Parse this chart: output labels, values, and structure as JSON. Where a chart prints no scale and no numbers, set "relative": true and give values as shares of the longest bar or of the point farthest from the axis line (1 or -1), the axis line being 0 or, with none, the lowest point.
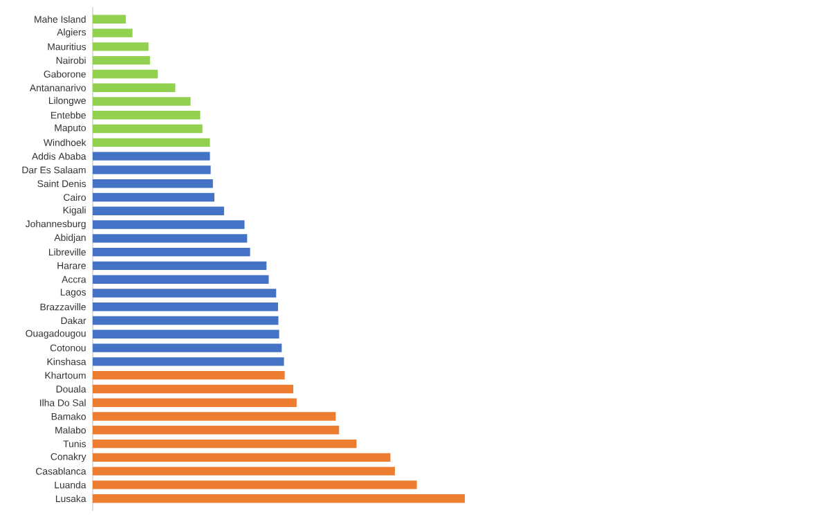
{
  "chart_data": {
    "type": "bar",
    "orientation": "horizontal",
    "relative": true,
    "categories": [
      "Mahe Island",
      "Algiers",
      "Mauritius",
      "Nairobi",
      "Gaborone",
      "Antananarivo",
      "Lilongwe",
      "Entebbe",
      "Maputo",
      "Windhoek",
      "Addis Ababa",
      "Dar Es Salaam",
      "Saint Denis",
      "Cairo",
      "Kigali",
      "Johannesburg",
      "Abidjan",
      "Libreville",
      "Harare",
      "Accra",
      "Lagos",
      "Brazzaville",
      "Dakar",
      "Ouagadougou",
      "Cotonou",
      "Kinshasa",
      "Khartoum",
      "Douala",
      "Ilha Do Sal",
      "Bamako",
      "Malabo",
      "Tunis",
      "Conakry",
      "Casablanca",
      "Luanda",
      "Lusaka"
    ],
    "values": [
      0.089,
      0.107,
      0.15,
      0.154,
      0.175,
      0.222,
      0.263,
      0.289,
      0.295,
      0.315,
      0.315,
      0.317,
      0.323,
      0.327,
      0.353,
      0.408,
      0.415,
      0.423,
      0.467,
      0.473,
      0.493,
      0.498,
      0.499,
      0.501,
      0.508,
      0.514,
      0.516,
      0.539,
      0.548,
      0.653,
      0.662,
      0.709,
      0.8,
      0.812,
      0.871,
      1
    ],
    "colors": [
      "#92d050",
      "#92d050",
      "#92d050",
      "#92d050",
      "#92d050",
      "#92d050",
      "#92d050",
      "#92d050",
      "#92d050",
      "#92d050",
      "#4472c4",
      "#4472c4",
      "#4472c4",
      "#4472c4",
      "#4472c4",
      "#4472c4",
      "#4472c4",
      "#4472c4",
      "#4472c4",
      "#4472c4",
      "#4472c4",
      "#4472c4",
      "#4472c4",
      "#4472c4",
      "#4472c4",
      "#4472c4",
      "#ed7d31",
      "#ed7d31",
      "#ed7d31",
      "#ed7d31",
      "#ed7d31",
      "#ed7d31",
      "#ed7d31",
      "#ed7d31",
      "#ed7d31",
      "#ed7d31"
    ]
  }
}
